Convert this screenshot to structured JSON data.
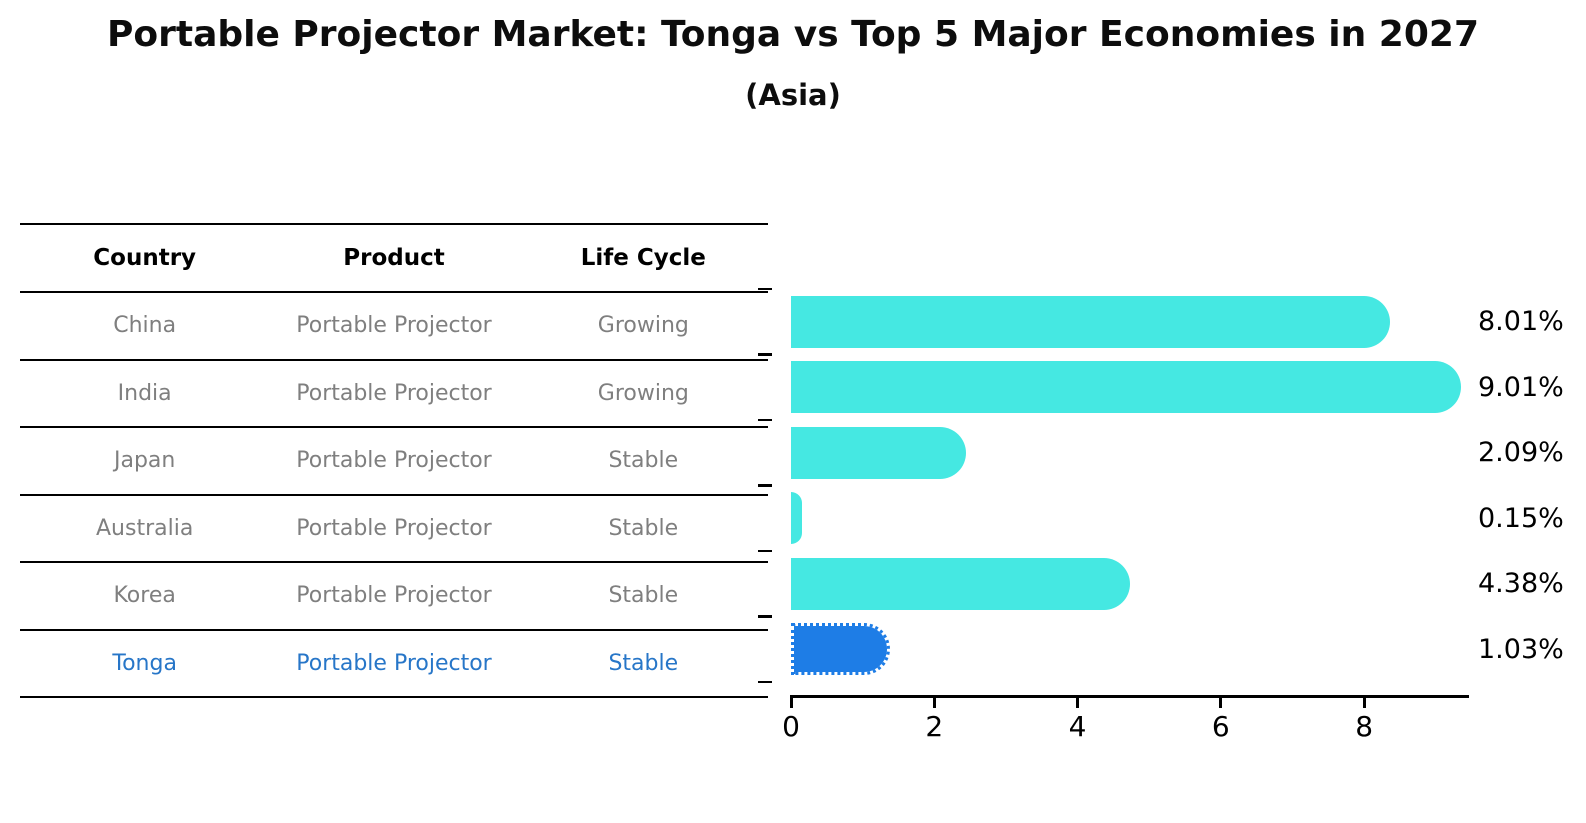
{
  "title": "Portable Projector Market: Tonga vs Top 5 Major Economies in 2027",
  "subtitle": "(Asia)",
  "table": {
    "headers": [
      "Country",
      "Product",
      "Life Cycle"
    ],
    "rows": [
      {
        "country": "China",
        "product": "Portable Projector",
        "life_cycle": "Growing"
      },
      {
        "country": "India",
        "product": "Portable Projector",
        "life_cycle": "Growing"
      },
      {
        "country": "Japan",
        "product": "Portable Projector",
        "life_cycle": "Stable"
      },
      {
        "country": "Australia",
        "product": "Portable Projector",
        "life_cycle": "Stable"
      },
      {
        "country": "Korea",
        "product": "Portable Projector",
        "life_cycle": "Stable"
      },
      {
        "country": "Tonga",
        "product": "Portable Projector",
        "life_cycle": "Stable"
      }
    ],
    "highlight_row": "Tonga"
  },
  "chart_data": {
    "type": "bar",
    "orientation": "horizontal",
    "title": "Portable Projector Market: Tonga vs Top 5 Major Economies in 2027",
    "subtitle": "(Asia)",
    "categories": [
      "China",
      "India",
      "Japan",
      "Australia",
      "Korea",
      "Tonga"
    ],
    "values": [
      8.01,
      9.01,
      2.09,
      0.15,
      4.38,
      1.03
    ],
    "value_labels": [
      "8.01%",
      "9.01%",
      "2.09%",
      "0.15%",
      "4.38%",
      "1.03%"
    ],
    "unit": "percent",
    "x_ticks": [
      "0",
      "2",
      "4",
      "6",
      "8"
    ],
    "x_tick_values": [
      0,
      2,
      4,
      6,
      8
    ],
    "xlim": [
      0,
      9.45
    ],
    "grid": false,
    "legend": false,
    "highlight_index": 5,
    "colors": {
      "bar": "#45E8E2",
      "highlight_bar": "#1E7DE6",
      "highlight_text": "#2776C8",
      "table_text": "#7f7f7f",
      "axis": "#000000"
    }
  }
}
